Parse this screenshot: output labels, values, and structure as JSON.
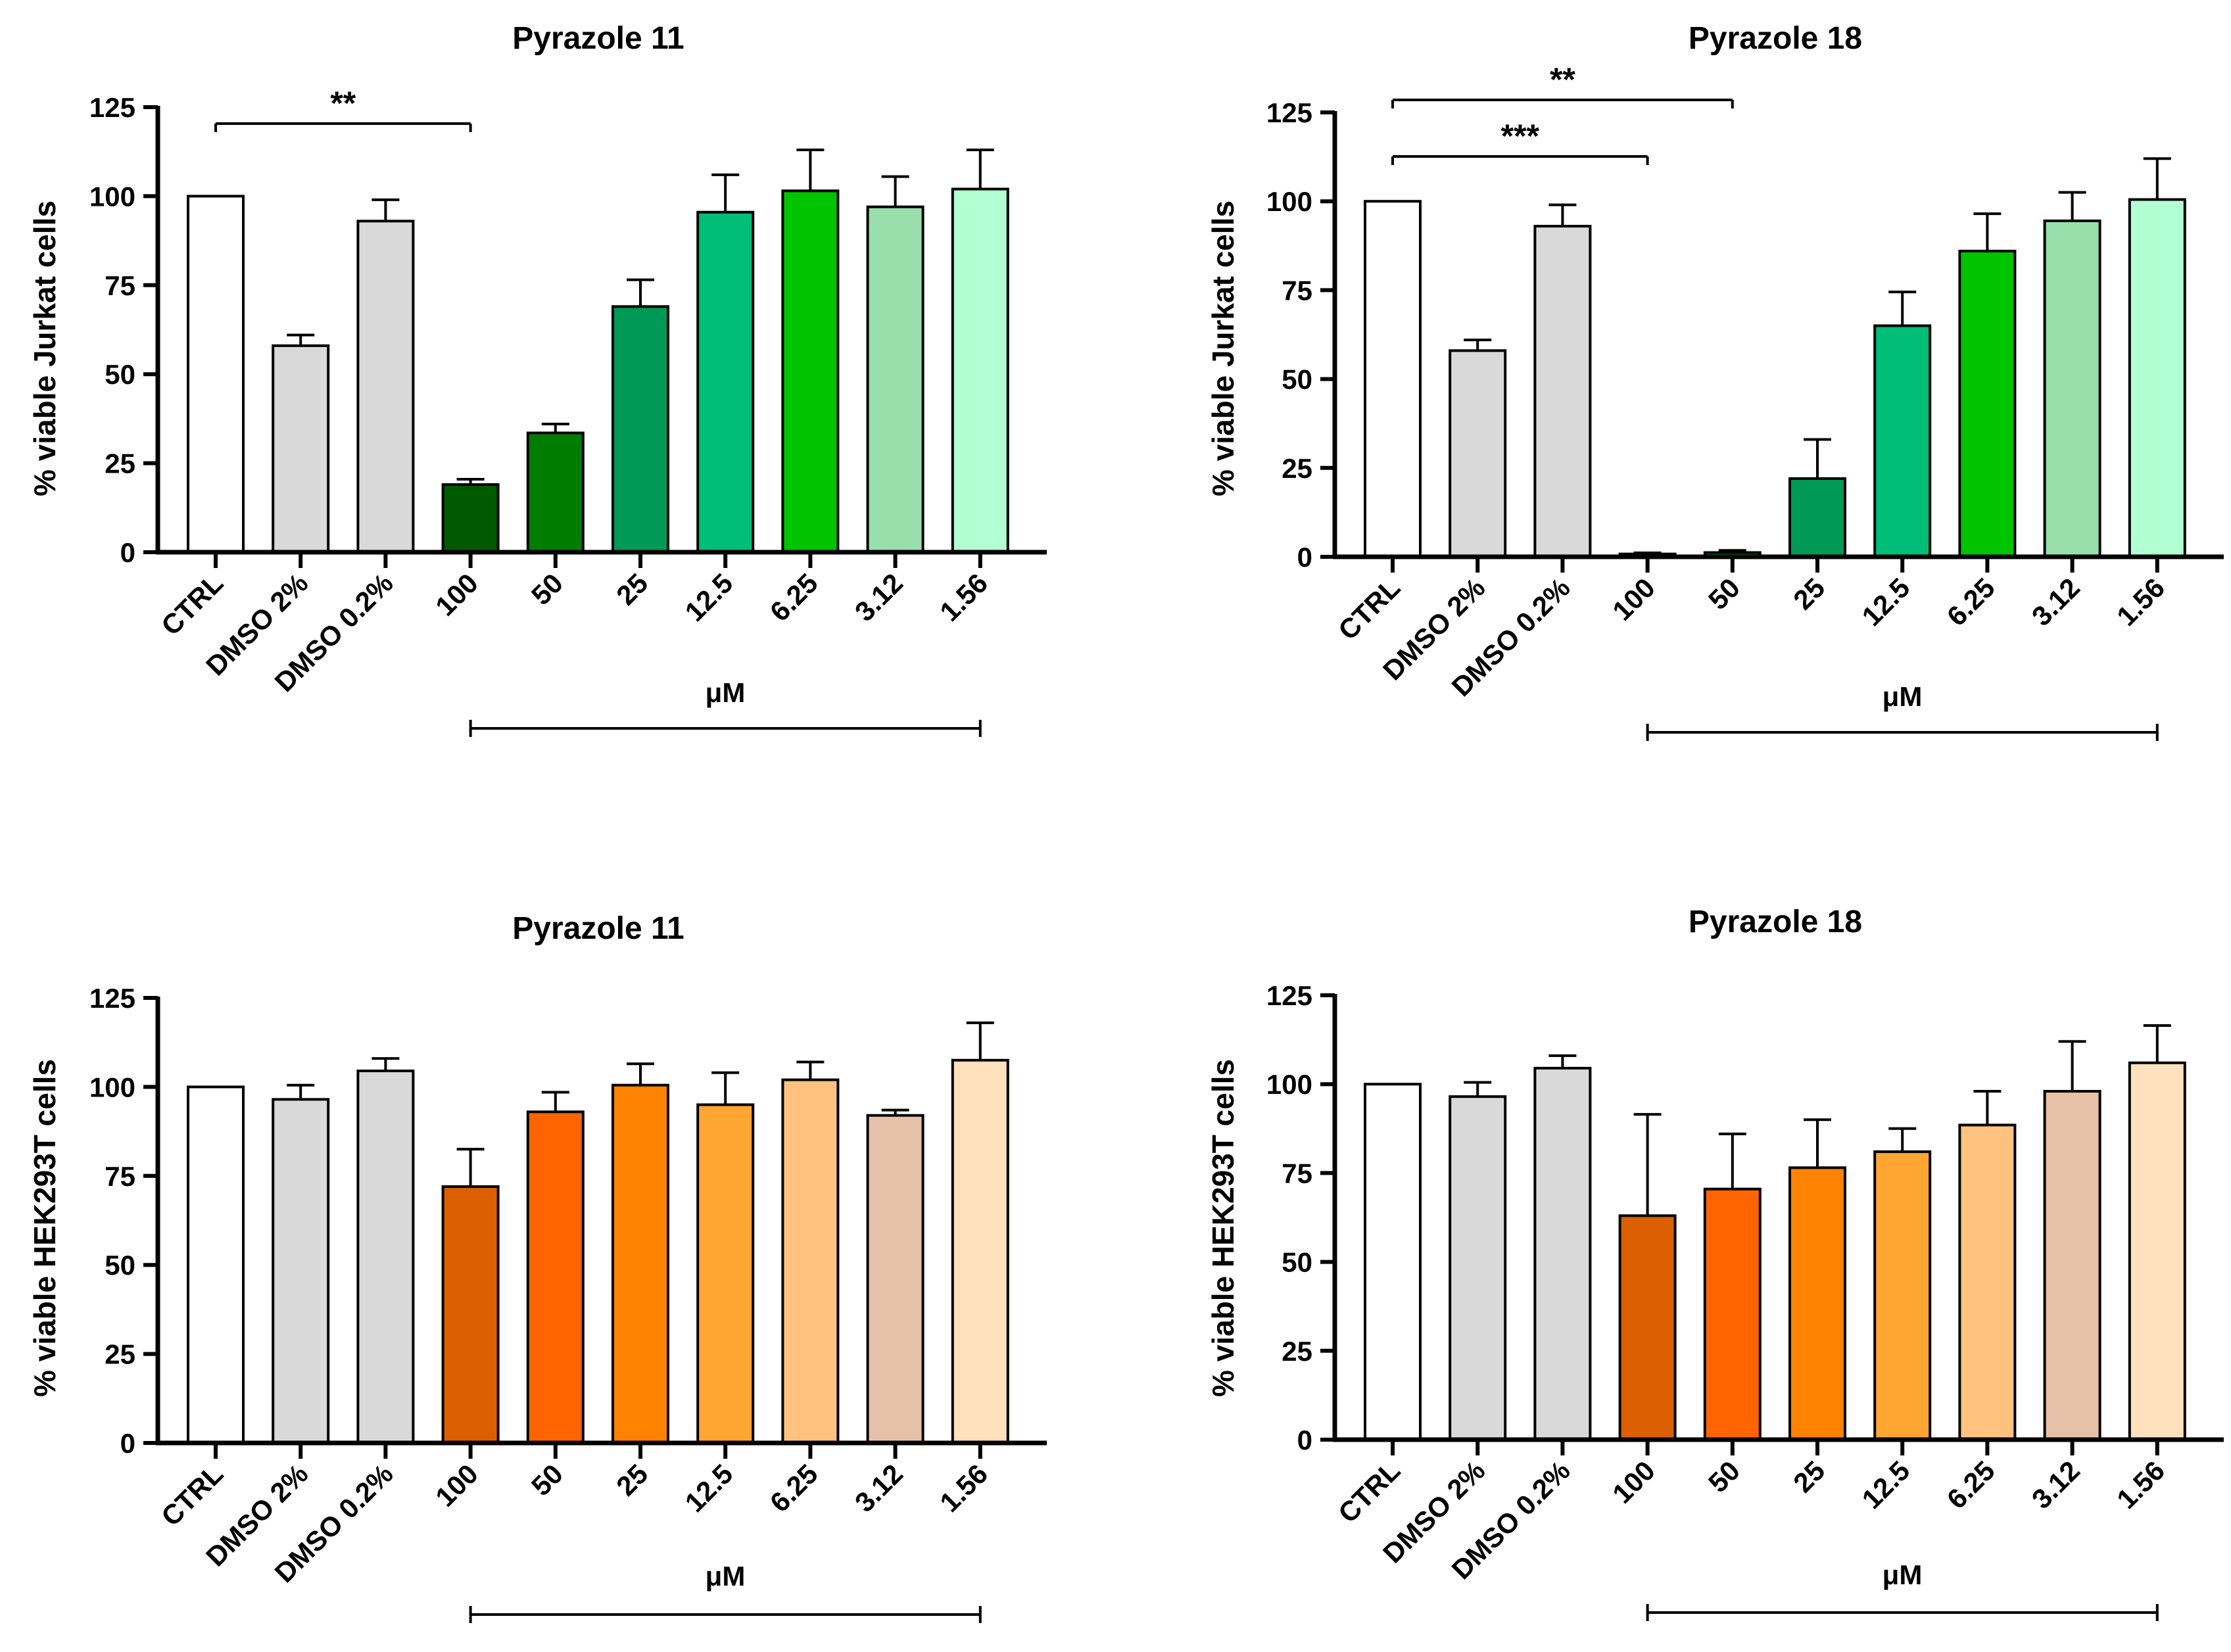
{
  "chart_data": [
    {
      "type": "bar",
      "title": "Pyrazole 11",
      "ylabel": "% viable Jurkat cells",
      "xunit": "μM",
      "ylim": [
        0,
        125
      ],
      "yticks": [
        "0",
        "25",
        "50",
        "75",
        "100",
        "125"
      ],
      "categories": [
        "CTRL",
        "DMSO 2%",
        "DMSO 0.2%",
        "100",
        "50",
        "25",
        "12.5",
        "6.25",
        "3.12",
        "1.56"
      ],
      "values": [
        100,
        58,
        93,
        19,
        33.5,
        69,
        95.5,
        101.5,
        97,
        102
      ],
      "errors": [
        0,
        3,
        6,
        1.5,
        2.5,
        7.5,
        10.5,
        11.5,
        8.5,
        11
      ],
      "colors": [
        "#ffffff",
        "#d9d9d9",
        "#d9d9d9",
        "#005a00",
        "#007d00",
        "#009955",
        "#00bd78",
        "#00c400",
        "#99dfac",
        "#b2ffd3"
      ],
      "significance": [
        {
          "label": "**",
          "from": 0,
          "to": 3
        }
      ]
    },
    {
      "type": "bar",
      "title": "Pyrazole 18",
      "ylabel": "% viable Jurkat cells",
      "xunit": "μM",
      "ylim": [
        0,
        125
      ],
      "yticks": [
        "0",
        "25",
        "50",
        "75",
        "100",
        "125"
      ],
      "categories": [
        "CTRL",
        "DMSO 2%",
        "DMSO 0.2%",
        "100",
        "50",
        "25",
        "12.5",
        "6.25",
        "3.12",
        "1.56"
      ],
      "values": [
        100,
        58,
        93,
        0.8,
        1.2,
        22,
        65,
        86,
        94.5,
        100.5
      ],
      "errors": [
        0,
        3,
        6,
        0.3,
        0.6,
        11,
        9.5,
        10.5,
        8,
        11.5
      ],
      "colors": [
        "#ffffff",
        "#d9d9d9",
        "#d9d9d9",
        "#005a00",
        "#007d00",
        "#009955",
        "#00bd78",
        "#00c400",
        "#99dfac",
        "#b2ffd3"
      ],
      "significance": [
        {
          "label": "***",
          "from": 0,
          "to": 3
        },
        {
          "label": "**",
          "from": 0,
          "to": 4
        }
      ]
    },
    {
      "type": "bar",
      "title": "Pyrazole 11",
      "ylabel": "% viable HEK293T cells",
      "xunit": "μM",
      "ylim": [
        0,
        125
      ],
      "yticks": [
        "0",
        "25",
        "50",
        "75",
        "100",
        "125"
      ],
      "categories": [
        "CTRL",
        "DMSO 2%",
        "DMSO 0.2%",
        "100",
        "50",
        "25",
        "12.5",
        "6.25",
        "3.12",
        "1.56"
      ],
      "values": [
        100,
        96.5,
        104.5,
        72,
        93,
        100.5,
        95,
        102,
        92,
        107.5
      ],
      "errors": [
        0,
        4,
        3.5,
        10.5,
        5.5,
        6,
        9,
        5,
        1.5,
        10.5
      ],
      "colors": [
        "#ffffff",
        "#d9d9d9",
        "#d9d9d9",
        "#dc6000",
        "#ff6400",
        "#ff8300",
        "#ffa532",
        "#ffc37f",
        "#e6c1a8",
        "#ffe1bd"
      ],
      "significance": []
    },
    {
      "type": "bar",
      "title": "Pyrazole 18",
      "ylabel": "% viable HEK293T cells",
      "xunit": "μM",
      "ylim": [
        0,
        125
      ],
      "yticks": [
        "0",
        "25",
        "50",
        "75",
        "100",
        "125"
      ],
      "categories": [
        "CTRL",
        "DMSO 2%",
        "DMSO 0.2%",
        "100",
        "50",
        "25",
        "12.5",
        "6.25",
        "3.12",
        "1.56"
      ],
      "values": [
        100,
        96.5,
        104.5,
        63,
        70.5,
        76.5,
        81,
        88.5,
        98,
        106
      ],
      "errors": [
        0,
        4,
        3.5,
        28.5,
        15.5,
        13.5,
        6.5,
        9.5,
        14,
        10.5
      ],
      "colors": [
        "#ffffff",
        "#d9d9d9",
        "#d9d9d9",
        "#dc6000",
        "#ff6400",
        "#ff8300",
        "#ffa532",
        "#ffc37f",
        "#e6c1a8",
        "#ffe1bd"
      ],
      "significance": []
    }
  ]
}
